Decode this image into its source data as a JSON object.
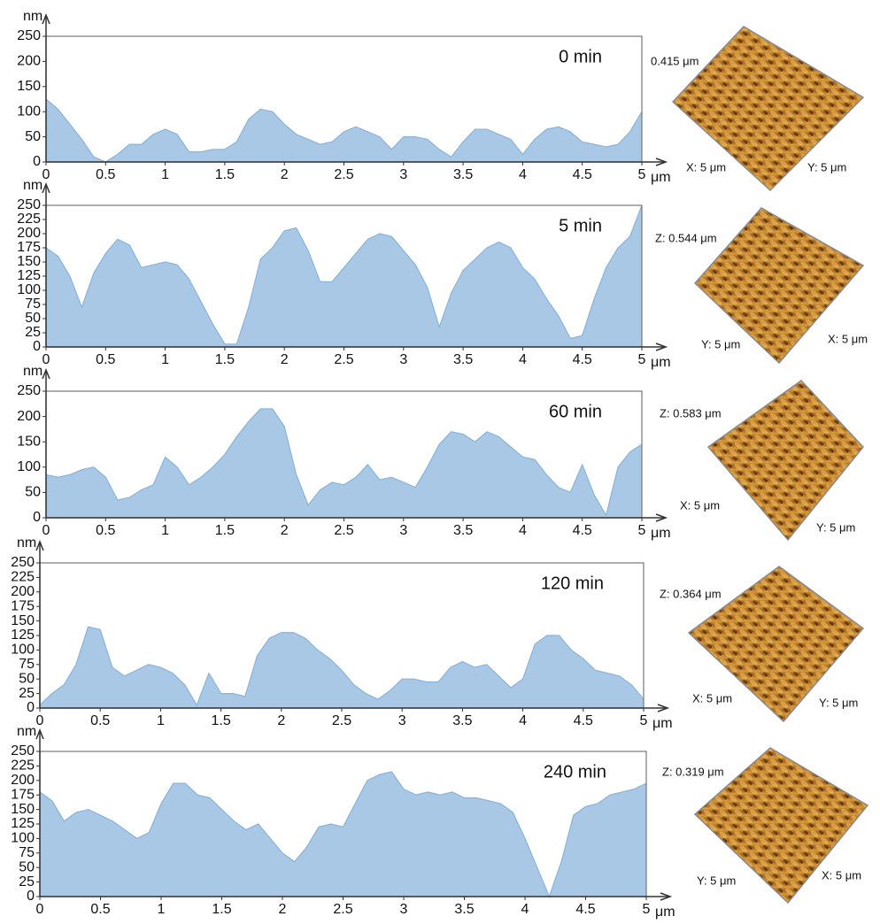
{
  "chart_data": [
    {
      "type": "area",
      "title": "0 min",
      "xlabel": "μm",
      "ylabel": "nm",
      "color": "#a9c8e6",
      "x": [
        0,
        0.1,
        0.2,
        0.3,
        0.4,
        0.5,
        0.6,
        0.7,
        0.8,
        0.9,
        1,
        1.1,
        1.2,
        1.3,
        1.4,
        1.5,
        1.6,
        1.7,
        1.8,
        1.9,
        2,
        2.1,
        2.2,
        2.3,
        2.4,
        2.5,
        2.6,
        2.7,
        2.8,
        2.9,
        3,
        3.1,
        3.2,
        3.3,
        3.4,
        3.5,
        3.6,
        3.7,
        3.8,
        3.9,
        4,
        4.1,
        4.2,
        4.3,
        4.4,
        4.5,
        4.6,
        4.7,
        4.8,
        4.9,
        5
      ],
      "values": [
        125,
        105,
        75,
        45,
        10,
        0,
        15,
        35,
        35,
        55,
        65,
        55,
        20,
        20,
        25,
        25,
        40,
        85,
        105,
        100,
        75,
        55,
        45,
        35,
        40,
        60,
        70,
        60,
        50,
        25,
        50,
        50,
        45,
        25,
        10,
        40,
        65,
        65,
        55,
        45,
        15,
        45,
        65,
        70,
        60,
        40,
        35,
        30,
        35,
        60,
        100
      ],
      "xlim": [
        0,
        5
      ],
      "ylim": [
        0,
        250
      ],
      "xticks": [
        0,
        0.5,
        1,
        1.5,
        2,
        2.5,
        3,
        3.5,
        4,
        4.5,
        5
      ],
      "yticks": [
        0,
        50,
        100,
        150,
        200,
        250
      ],
      "afm": {
        "z": "0.415 μm",
        "x": "X: 5 μm",
        "y": "Y: 5 μm"
      }
    },
    {
      "type": "area",
      "title": "5 min",
      "xlabel": "μm",
      "ylabel": "nm",
      "color": "#a9c8e6",
      "x": [
        0,
        0.1,
        0.2,
        0.3,
        0.4,
        0.5,
        0.6,
        0.7,
        0.8,
        0.9,
        1,
        1.1,
        1.2,
        1.3,
        1.4,
        1.5,
        1.6,
        1.7,
        1.8,
        1.9,
        2,
        2.1,
        2.2,
        2.3,
        2.4,
        2.5,
        2.6,
        2.7,
        2.8,
        2.9,
        3,
        3.1,
        3.2,
        3.3,
        3.4,
        3.5,
        3.6,
        3.7,
        3.8,
        3.9,
        4,
        4.1,
        4.2,
        4.3,
        4.4,
        4.5,
        4.6,
        4.7,
        4.8,
        4.9,
        5
      ],
      "values": [
        175,
        160,
        125,
        70,
        130,
        165,
        190,
        180,
        140,
        145,
        150,
        145,
        120,
        80,
        40,
        5,
        5,
        70,
        155,
        175,
        205,
        210,
        170,
        115,
        115,
        140,
        165,
        190,
        200,
        195,
        170,
        145,
        105,
        35,
        95,
        135,
        155,
        175,
        185,
        175,
        140,
        120,
        85,
        55,
        15,
        20,
        85,
        140,
        175,
        195,
        250
      ],
      "xlim": [
        0,
        5
      ],
      "ylim": [
        0,
        250
      ],
      "xticks": [
        0,
        0.5,
        1,
        1.5,
        2,
        2.5,
        3,
        3.5,
        4,
        4.5,
        5
      ],
      "yticks": [
        0,
        25,
        50,
        75,
        100,
        125,
        150,
        175,
        200,
        225,
        250
      ],
      "afm": {
        "z": "Z: 0.544 μm",
        "x": "X: 5 μm",
        "y": "Y: 5 μm"
      }
    },
    {
      "type": "area",
      "title": "60 min",
      "xlabel": "μm",
      "ylabel": "nm",
      "color": "#a9c8e6",
      "x": [
        0,
        0.1,
        0.2,
        0.3,
        0.4,
        0.5,
        0.6,
        0.7,
        0.8,
        0.9,
        1,
        1.1,
        1.2,
        1.3,
        1.4,
        1.5,
        1.6,
        1.7,
        1.8,
        1.9,
        2,
        2.1,
        2.2,
        2.3,
        2.4,
        2.5,
        2.6,
        2.7,
        2.8,
        2.9,
        3,
        3.1,
        3.2,
        3.3,
        3.4,
        3.5,
        3.6,
        3.7,
        3.8,
        3.9,
        4,
        4.1,
        4.2,
        4.3,
        4.4,
        4.5,
        4.6,
        4.7,
        4.8,
        4.9,
        5
      ],
      "values": [
        85,
        80,
        85,
        95,
        100,
        80,
        35,
        40,
        55,
        65,
        120,
        100,
        65,
        80,
        100,
        125,
        160,
        190,
        215,
        215,
        180,
        85,
        25,
        55,
        70,
        65,
        80,
        105,
        75,
        80,
        70,
        60,
        100,
        145,
        170,
        165,
        150,
        170,
        160,
        140,
        120,
        115,
        85,
        60,
        50,
        105,
        45,
        5,
        100,
        130,
        145
      ],
      "xlim": [
        0,
        5
      ],
      "ylim": [
        0,
        250
      ],
      "xticks": [
        0,
        0.5,
        1,
        1.5,
        2,
        2.5,
        3,
        3.5,
        4,
        4.5,
        5
      ],
      "yticks": [
        0,
        50,
        100,
        150,
        200,
        250
      ],
      "afm": {
        "z": "Z: 0.583 μm",
        "x": "X: 5 μm",
        "y": "Y: 5 μm"
      }
    },
    {
      "type": "area",
      "title": "120 min",
      "xlabel": "μm",
      "ylabel": "nm",
      "color": "#a9c8e6",
      "x": [
        0,
        0.1,
        0.2,
        0.3,
        0.4,
        0.5,
        0.6,
        0.7,
        0.8,
        0.9,
        1,
        1.1,
        1.2,
        1.3,
        1.4,
        1.5,
        1.6,
        1.7,
        1.8,
        1.9,
        2,
        2.1,
        2.2,
        2.3,
        2.4,
        2.5,
        2.6,
        2.7,
        2.8,
        2.9,
        3,
        3.1,
        3.2,
        3.3,
        3.4,
        3.5,
        3.6,
        3.7,
        3.8,
        3.9,
        4,
        4.1,
        4.2,
        4.3,
        4.4,
        4.5,
        4.6,
        4.7,
        4.8,
        4.9,
        5
      ],
      "values": [
        5,
        25,
        40,
        75,
        140,
        135,
        70,
        55,
        65,
        75,
        70,
        60,
        40,
        5,
        60,
        25,
        25,
        20,
        90,
        120,
        130,
        130,
        120,
        100,
        85,
        65,
        40,
        25,
        15,
        30,
        50,
        50,
        45,
        45,
        70,
        80,
        70,
        75,
        55,
        35,
        50,
        110,
        125,
        125,
        100,
        85,
        65,
        60,
        55,
        40,
        15
      ],
      "xlim": [
        0,
        5
      ],
      "ylim": [
        0,
        250
      ],
      "xticks": [
        0,
        0.5,
        1,
        1.5,
        2,
        2.5,
        3,
        3.5,
        4,
        4.5,
        5
      ],
      "yticks": [
        0,
        25,
        50,
        75,
        100,
        125,
        150,
        175,
        200,
        225,
        250
      ],
      "afm": {
        "z": "Z: 0.364 μm",
        "x": "X: 5 μm",
        "y": "Y: 5 μm"
      }
    },
    {
      "type": "area",
      "title": "240 min",
      "xlabel": "μm",
      "ylabel": "nm",
      "color": "#a9c8e6",
      "x": [
        0,
        0.1,
        0.2,
        0.3,
        0.4,
        0.5,
        0.6,
        0.7,
        0.8,
        0.9,
        1,
        1.1,
        1.2,
        1.3,
        1.4,
        1.5,
        1.6,
        1.7,
        1.8,
        1.9,
        2,
        2.1,
        2.2,
        2.3,
        2.4,
        2.5,
        2.6,
        2.7,
        2.8,
        2.9,
        3,
        3.1,
        3.2,
        3.3,
        3.4,
        3.5,
        3.6,
        3.7,
        3.8,
        3.9,
        4,
        4.1,
        4.2,
        4.3,
        4.4,
        4.5,
        4.6,
        4.7,
        4.8,
        4.9,
        5
      ],
      "values": [
        180,
        165,
        130,
        145,
        150,
        140,
        130,
        115,
        100,
        110,
        160,
        195,
        195,
        175,
        170,
        150,
        130,
        115,
        125,
        100,
        75,
        60,
        85,
        120,
        125,
        120,
        160,
        200,
        210,
        215,
        185,
        175,
        180,
        175,
        180,
        170,
        170,
        165,
        160,
        145,
        100,
        50,
        0,
        60,
        140,
        155,
        160,
        175,
        180,
        185,
        195
      ],
      "xlim": [
        0,
        5
      ],
      "ylim": [
        0,
        250
      ],
      "xticks": [
        0,
        0.5,
        1,
        1.5,
        2,
        2.5,
        3,
        3.5,
        4,
        4.5,
        5
      ],
      "yticks": [
        0,
        25,
        50,
        75,
        100,
        125,
        150,
        175,
        200,
        225,
        250
      ],
      "afm": {
        "z": "Z: 0.319 μm",
        "x": "X: 5 μm",
        "y": "Y: 5 μm"
      }
    }
  ]
}
